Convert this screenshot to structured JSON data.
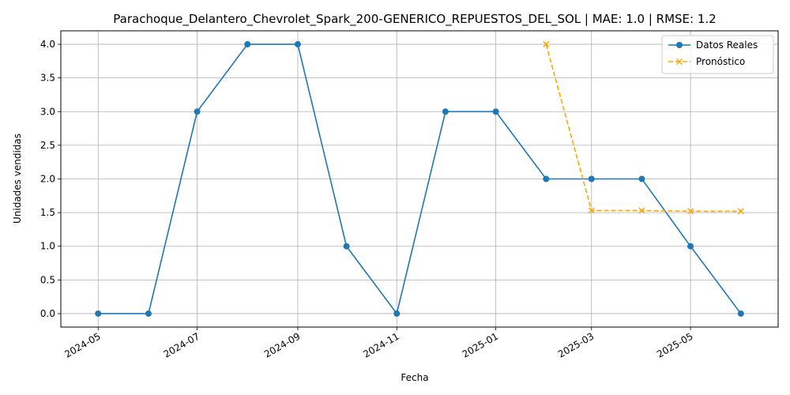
{
  "chart_data": {
    "type": "line",
    "title": "Parachoque_Delantero_Chevrolet_Spark_200-GENERICO_REPUESTOS_DEL_SOL | MAE: 1.0 | RMSE: 1.2",
    "xlabel": "Fecha",
    "ylabel": "Unidades vendidas",
    "ylim": [
      -0.2,
      4.2
    ],
    "xlim": [
      "2024-04-08",
      "2025-06-24"
    ],
    "grid": true,
    "legend_position": "top-right",
    "x_ticks": [
      "2024-05-01",
      "2024-07-01",
      "2024-09-01",
      "2024-11-01",
      "2025-01-01",
      "2025-03-01",
      "2025-05-01"
    ],
    "x_tick_labels": [
      "2024-05",
      "2024-07",
      "2024-09",
      "2024-11",
      "2025-01",
      "2025-03",
      "2025-05"
    ],
    "y_ticks": [
      0,
      0.5,
      1,
      1.5,
      2,
      2.5,
      3,
      3.5,
      4
    ],
    "y_tick_labels": [
      "0.0",
      "0.5",
      "1.0",
      "1.5",
      "2.0",
      "2.5",
      "3.0",
      "3.5",
      "4.0"
    ],
    "series": [
      {
        "name": "Datos Reales",
        "color": "#1f77b4",
        "marker": "circle",
        "linestyle": "solid",
        "x": [
          "2024-05-01",
          "2024-06-01",
          "2024-07-01",
          "2024-08-01",
          "2024-09-01",
          "2024-10-01",
          "2024-11-01",
          "2024-12-01",
          "2025-01-01",
          "2025-02-01",
          "2025-03-01",
          "2025-04-01",
          "2025-05-01",
          "2025-06-01"
        ],
        "values": [
          0,
          0,
          3,
          4,
          4,
          1,
          0,
          3,
          3,
          2,
          2,
          2,
          1,
          0
        ]
      },
      {
        "name": "Pronóstico",
        "color": "#ffa500",
        "marker": "x",
        "linestyle": "dashed",
        "x": [
          "2025-02-01",
          "2025-03-01",
          "2025-04-01",
          "2025-05-01",
          "2025-06-01"
        ],
        "values": [
          4.0,
          1.53,
          1.53,
          1.52,
          1.52
        ]
      }
    ]
  }
}
